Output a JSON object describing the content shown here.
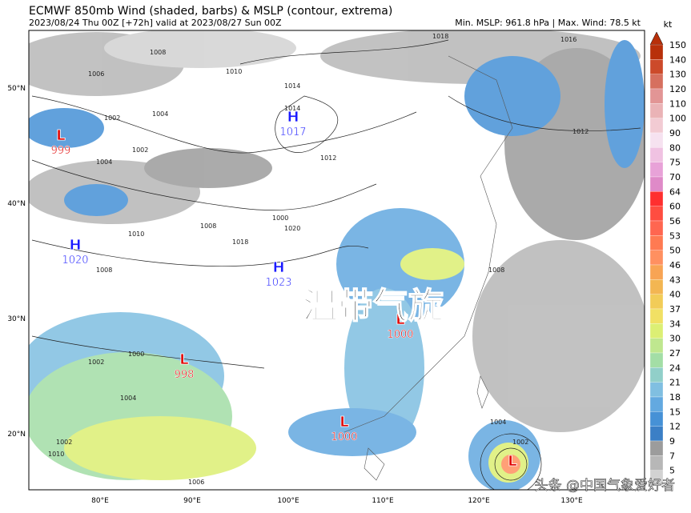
{
  "header": {
    "title": "ECMWF 850mb Wind (shaded, barbs) & MSLP (contour, extrema)",
    "subtitle": "2023/08/24 Thu 00Z [+72h] valid at 2023/08/27 Sun 00Z",
    "stats": "Min. MSLP: 961.8 hPa | Max. Wind: 78.5 kt"
  },
  "colorbar": {
    "unit": "kt",
    "levels": [
      150,
      140,
      130,
      120,
      110,
      100,
      90,
      80,
      75,
      70,
      64,
      60,
      56,
      53,
      50,
      46,
      43,
      40,
      37,
      34,
      30,
      27,
      24,
      21,
      18,
      15,
      12,
      9,
      7,
      5
    ],
    "colors": [
      "#b8300a",
      "#cc4a2a",
      "#d6705f",
      "#e29595",
      "#eab3b6",
      "#f2cbd3",
      "#f6e2f0",
      "#f0c2e2",
      "#e8a2d8",
      "#df8ac8",
      "#ff2f2f",
      "#ff4d40",
      "#ff6650",
      "#ff7a52",
      "#ff9060",
      "#f8a454",
      "#f3b652",
      "#f2cc58",
      "#f1e064",
      "#dcef74",
      "#bfe78f",
      "#a3dea6",
      "#91cfc9",
      "#80bfe1",
      "#63a9e0",
      "#4691d6",
      "#3b7fc6",
      "#9c9c9c",
      "#b7b7b7",
      "#d2d2d2"
    ]
  },
  "axes": {
    "lat_labels": [
      "50°N",
      "40°N",
      "30°N",
      "20°N"
    ],
    "lon_labels": [
      "80°E",
      "90°E",
      "100°E",
      "110°E",
      "120°E",
      "130°E"
    ]
  },
  "centers": [
    {
      "type": "H",
      "value": 1017
    },
    {
      "type": "H",
      "value": 1020
    },
    {
      "type": "H",
      "value": 1023
    },
    {
      "type": "L",
      "value": 999
    },
    {
      "type": "L",
      "value": 998
    },
    {
      "type": "L",
      "value": 1000
    },
    {
      "type": "L",
      "value": 1000
    },
    {
      "type": "L"
    }
  ],
  "contour_labels": [
    1008,
    1006,
    1010,
    1014,
    1014,
    1018,
    1016,
    1012,
    1012,
    1002,
    1004,
    1002,
    1004,
    1000,
    1008,
    1010,
    1020,
    1018,
    1008,
    1000,
    1002,
    1004,
    1002,
    1006,
    1010,
    1008,
    1004,
    1002
  ],
  "overlay": "温带气旋",
  "watermark": "头条 @中国气象爱好者"
}
